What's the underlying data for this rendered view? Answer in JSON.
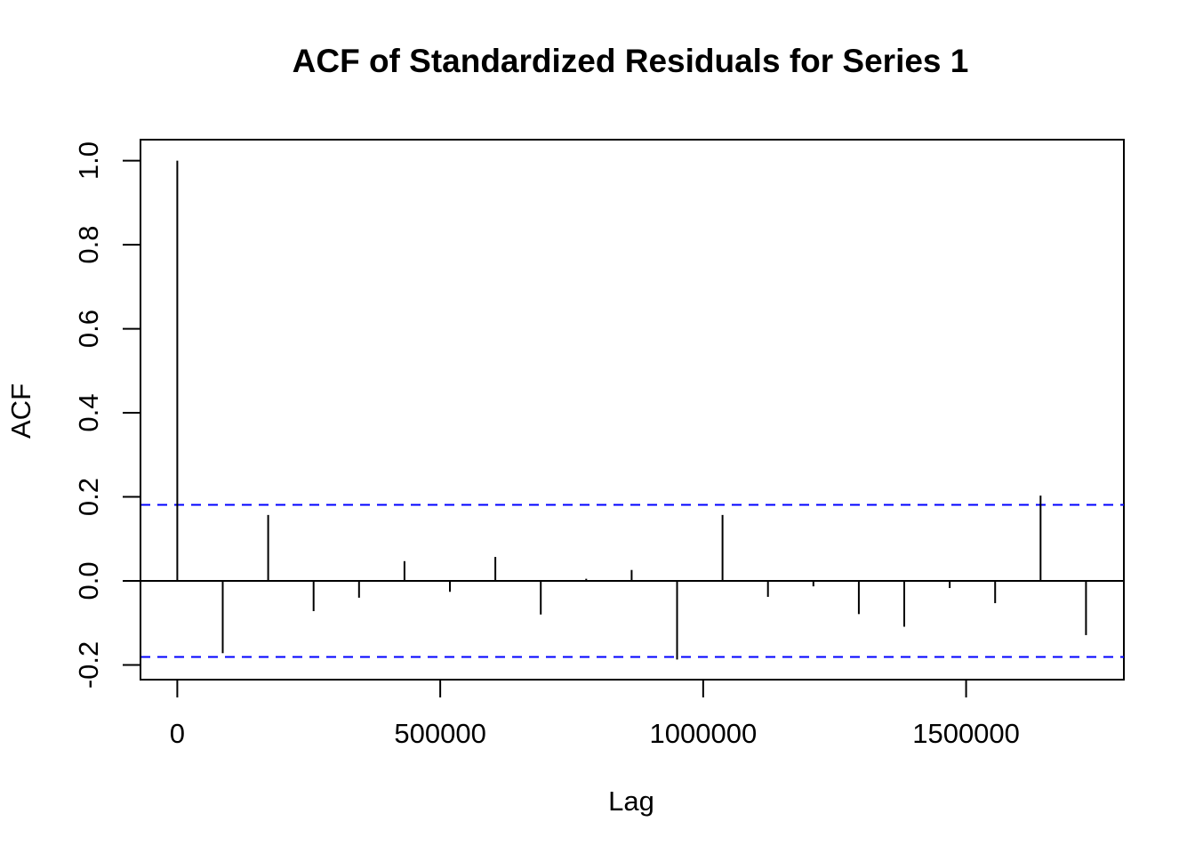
{
  "chart_data": {
    "type": "bar",
    "title": "ACF of Standardized Residuals for Series 1",
    "xlabel": "Lag",
    "ylabel": "ACF",
    "xlim": [
      -70000,
      1800000
    ],
    "ylim": [
      -0.235,
      1.05
    ],
    "x_ticks": [
      0,
      500000,
      1000000,
      1500000
    ],
    "x_tick_labels": [
      "0",
      "500000",
      "1000000",
      "1500000"
    ],
    "y_ticks": [
      -0.2,
      0.0,
      0.2,
      0.4,
      0.6,
      0.8,
      1.0
    ],
    "y_tick_labels": [
      "-0.2",
      "0.0",
      "0.2",
      "0.4",
      "0.6",
      "0.8",
      "1.0"
    ],
    "confidence_bound": 0.181,
    "grid": false,
    "colors": {
      "spikes": "#000000",
      "bounds": "#0000ff",
      "zero_line": "#000000"
    },
    "lag": [
      0,
      86400,
      172800,
      259200,
      345600,
      432000,
      518400,
      604800,
      691200,
      777600,
      864000,
      950400,
      1036800,
      1123200,
      1209600,
      1296000,
      1382400,
      1468800,
      1555200,
      1641600,
      1728000
    ],
    "acf": [
      1.0,
      -0.172,
      0.157,
      -0.072,
      -0.04,
      0.047,
      -0.026,
      0.057,
      -0.08,
      0.005,
      0.026,
      -0.187,
      0.157,
      -0.038,
      -0.013,
      -0.079,
      -0.109,
      -0.017,
      -0.053,
      0.203,
      -0.129
    ]
  }
}
